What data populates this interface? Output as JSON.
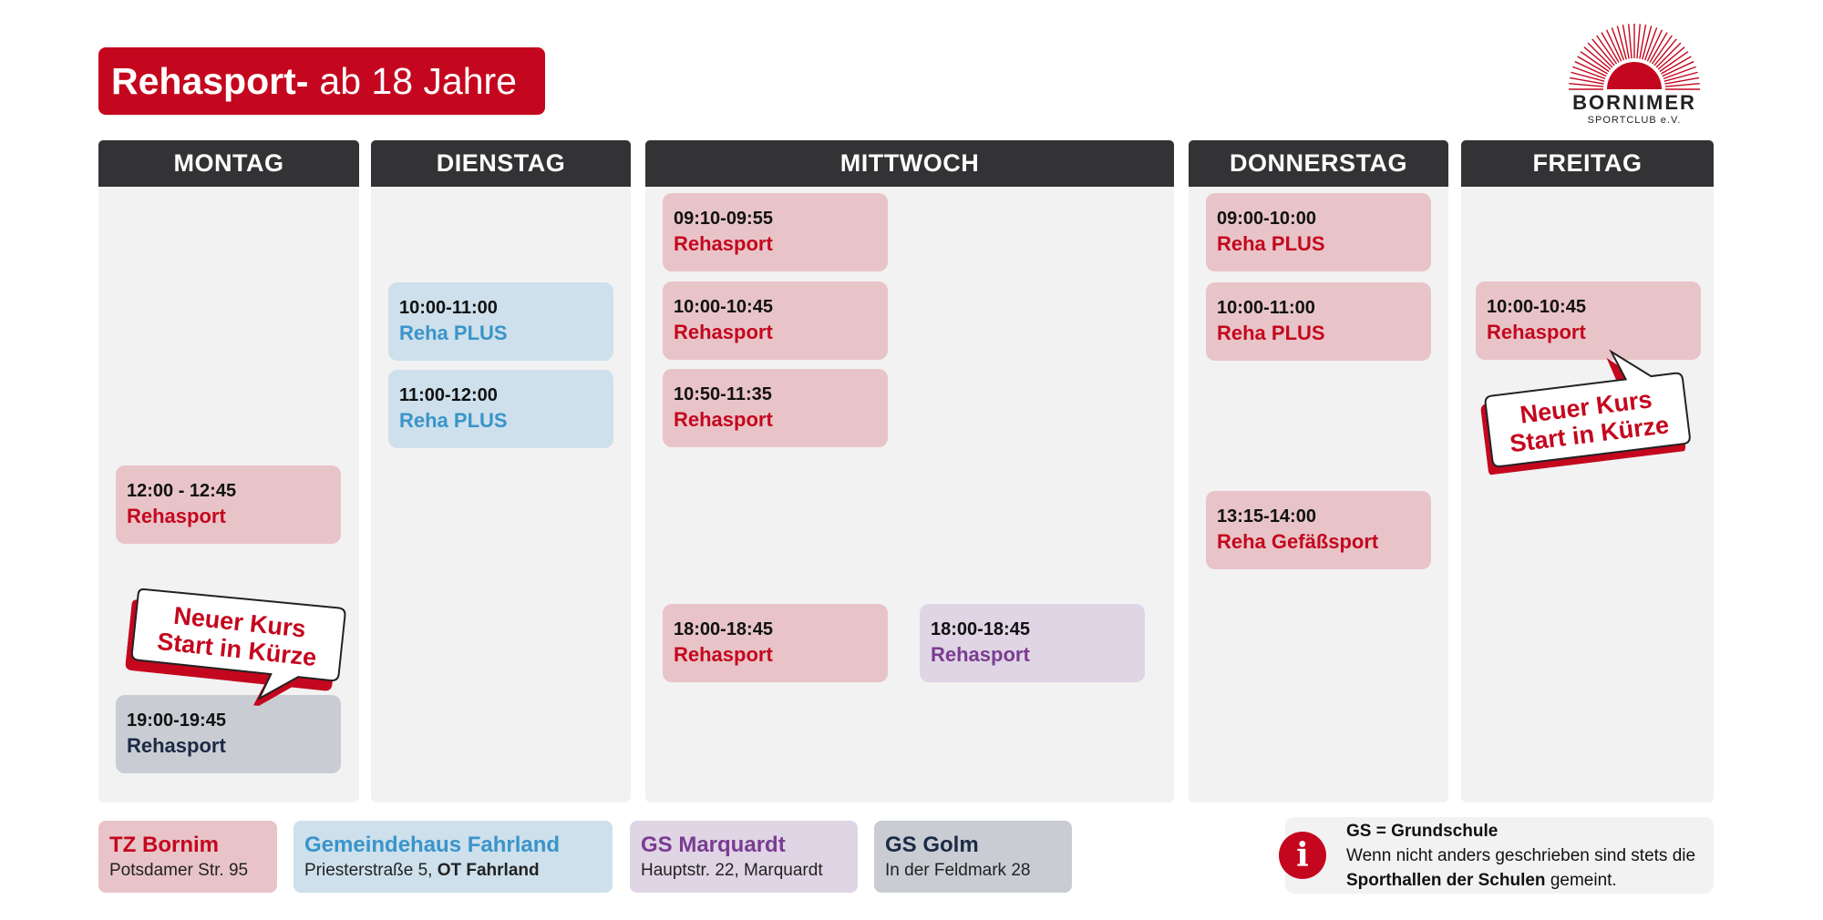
{
  "title": {
    "bold": "Rehasport-",
    "normal": "ab 18 Jahre"
  },
  "logo": {
    "name": "BORNIMER",
    "sub": "SPORTCLUB e.V."
  },
  "days": [
    "MONTAG",
    "DIENSTAG",
    "MITTWOCH",
    "DONNERSTAG",
    "FREITAG"
  ],
  "slots": {
    "mo1": {
      "time": "12:00 - 12:45",
      "label": "Rehasport"
    },
    "mo2": {
      "time": "19:00-19:45",
      "label": "Rehasport"
    },
    "di1": {
      "time": "10:00-11:00",
      "label": "Reha PLUS"
    },
    "di2": {
      "time": "11:00-12:00",
      "label": "Reha PLUS"
    },
    "mi1": {
      "time": "09:10-09:55",
      "label": "Rehasport"
    },
    "mi2": {
      "time": "10:00-10:45",
      "label": "Rehasport"
    },
    "mi3": {
      "time": "10:50-11:35",
      "label": "Rehasport"
    },
    "mi4": {
      "time": "18:00-18:45",
      "label": "Rehasport"
    },
    "mi5": {
      "time": "18:00-18:45",
      "label": "Rehasport"
    },
    "do1": {
      "time": "09:00-10:00",
      "label": "Reha PLUS"
    },
    "do2": {
      "time": "10:00-11:00",
      "label": "Reha PLUS"
    },
    "do3": {
      "time": "13:15-14:00",
      "label": "Reha Gefäßsport"
    },
    "fr1": {
      "time": "10:00-10:45",
      "label": "Rehasport"
    }
  },
  "bubbles": {
    "monday": {
      "line1": "Neuer Kurs",
      "line2": "Start in Kürze"
    },
    "friday": {
      "line1": "Neuer Kurs",
      "line2": "Start in Kürze"
    }
  },
  "legend": [
    {
      "name": "TZ Bornim",
      "addr": "Potsdamer Str. 95",
      "addr_bold": ""
    },
    {
      "name": "Gemeindehaus Fahrland",
      "addr": "Priesterstraße 5,",
      "addr_bold": "OT Fahrland"
    },
    {
      "name": "GS Marquardt",
      "addr": "Hauptstr. 22, Marquardt",
      "addr_bold": ""
    },
    {
      "name": "GS Golm",
      "addr": "In der Feldmark 28",
      "addr_bold": ""
    }
  ],
  "info": {
    "title": "GS = Grundschule",
    "text1": "Wenn nicht anders geschrieben sind stets die",
    "text_bold": "Sporthallen der Schulen",
    "text2": "gemeint."
  },
  "colors": {
    "red": "#c4071e",
    "header": "#333336",
    "column": "#f2f2f3",
    "pink": "#e8c4c8",
    "blue": "#cde0ec",
    "purple": "#dfd5e4",
    "grey": "#c9cdd3",
    "blue_text": "#3a94c9",
    "purple_text": "#7a3c92",
    "grey_text": "#1b2a45"
  },
  "icons": {
    "info": "info-icon",
    "logo": "sun-logo-icon"
  }
}
